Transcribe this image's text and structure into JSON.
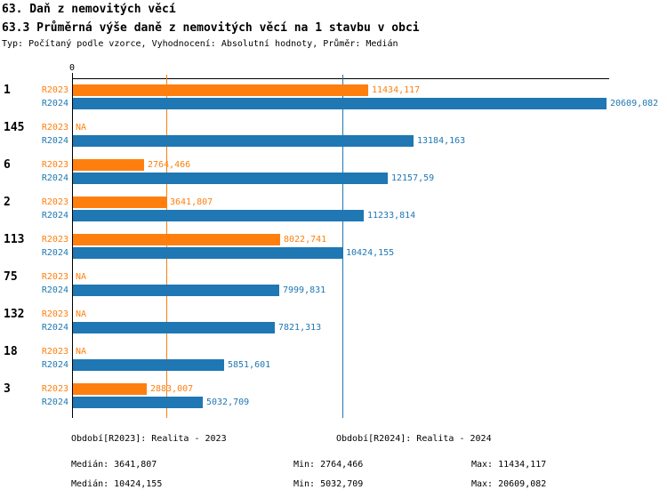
{
  "header": {
    "title": "63. Daň z nemovitých věcí",
    "subtitle": "63.3 Průměrná výše daně z nemovitých věcí na 1 stavbu v obci",
    "meta": "Typ: Počítaný podle vzorce, Vyhodnocení: Absolutní hodnoty, Průměr: Medián"
  },
  "colors": {
    "r2023": "#ff7f0e",
    "r2024": "#1f77b4",
    "axis": "#000000"
  },
  "chart_data": {
    "type": "bar",
    "orientation": "horizontal",
    "title": "63.3 Průměrná výše daně z nemovitých věcí na 1 stavbu v obci",
    "axis_origin_label": "0",
    "xlim": [
      0,
      20609.082
    ],
    "xmax": 20609.082,
    "grid": false,
    "categories": [
      "1",
      "145",
      "6",
      "2",
      "113",
      "75",
      "132",
      "18",
      "3"
    ],
    "series": [
      {
        "name": "R2023",
        "color_key": "r2023",
        "values": [
          11434.117,
          null,
          2764.466,
          3641.807,
          8022.741,
          null,
          null,
          null,
          2883.007
        ],
        "labels": [
          "11434,117",
          "NA",
          "2764,466",
          "3641,807",
          "8022,741",
          "NA",
          "NA",
          "NA",
          "2883,007"
        ]
      },
      {
        "name": "R2024",
        "color_key": "r2024",
        "values": [
          20609.082,
          13184.163,
          12157.59,
          11233.814,
          10424.155,
          7999.831,
          7821.313,
          5851.601,
          5032.709
        ],
        "labels": [
          "20609,082",
          "13184,163",
          "12157,59",
          "11233,814",
          "10424,155",
          "7999,831",
          "7821,313",
          "5851,601",
          "5032,709"
        ]
      }
    ],
    "median_lines": [
      {
        "series": "R2023",
        "value": 3641.807,
        "color_key": "r2023"
      },
      {
        "series": "R2024",
        "value": 10424.155,
        "color_key": "r2024"
      }
    ]
  },
  "legend": {
    "r2023": "Období[R2023]: Realita - 2023",
    "r2024": "Období[R2024]: Realita - 2024"
  },
  "stats": {
    "r2023": {
      "median": "Medián: 3641,807",
      "min": "Min: 2764,466",
      "max": "Max: 11434,117"
    },
    "r2024": {
      "median": "Medián: 10424,155",
      "min": "Min: 5032,709",
      "max": "Max: 20609,082"
    }
  }
}
